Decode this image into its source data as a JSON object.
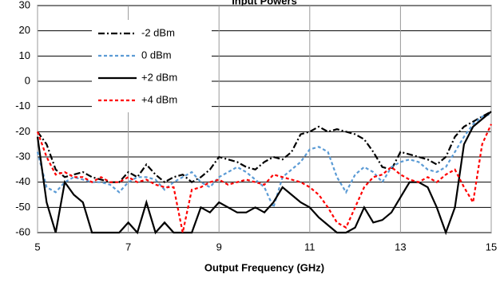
{
  "chart_data": {
    "type": "line",
    "title": "Input Powers",
    "x_label": "Output Frequency (GHz)",
    "xlim": [
      5,
      15
    ],
    "xticks": [
      5,
      7,
      9,
      11,
      13,
      15
    ],
    "ylim": [
      -60,
      30
    ],
    "yticks": [
      -60,
      -50,
      -40,
      -30,
      -20,
      -10,
      0,
      10,
      20,
      30
    ],
    "grid": true,
    "legend": "upper left",
    "x": [
      5,
      5.2,
      5.4,
      5.6,
      5.8,
      6,
      6.2,
      6.4,
      6.6,
      6.8,
      7,
      7.2,
      7.4,
      7.6,
      7.8,
      8,
      8.2,
      8.4,
      8.6,
      8.8,
      9,
      9.2,
      9.4,
      9.6,
      9.8,
      10,
      10.2,
      10.4,
      10.6,
      10.8,
      11,
      11.2,
      11.4,
      11.6,
      11.8,
      12,
      12.2,
      12.4,
      12.6,
      12.8,
      13,
      13.2,
      13.4,
      13.6,
      13.8,
      14,
      14.2,
      14.4,
      14.6,
      14.8,
      15
    ],
    "series": [
      {
        "name": "-2 dBm",
        "color": "#000000",
        "linestyle": "dashdot",
        "values": [
          -20,
          -25,
          -35,
          -38,
          -37,
          -36,
          -38,
          -39,
          -40,
          -40,
          -36,
          -38,
          -33,
          -37,
          -40,
          -38,
          -37,
          -40,
          -38,
          -35,
          -30,
          -31,
          -32,
          -34,
          -35,
          -32,
          -30,
          -31,
          -28,
          -21,
          -20,
          -18,
          -20,
          -19,
          -20,
          -21,
          -23,
          -28,
          -34,
          -35,
          -28,
          -29,
          -30,
          -31,
          -33,
          -30,
          -22,
          -18,
          -16,
          -14,
          -12
        ]
      },
      {
        "name": "0 dBm",
        "color": "#5b9bd5",
        "linestyle": "dashed",
        "values": [
          -28,
          -42,
          -44,
          -40,
          -38,
          -39,
          -40,
          -40,
          -41,
          -44,
          -40,
          -38,
          -38,
          -39,
          -43,
          -40,
          -38,
          -36,
          -40,
          -42,
          -38,
          -36,
          -34,
          -36,
          -39,
          -42,
          -50,
          -38,
          -35,
          -32,
          -27,
          -26,
          -28,
          -38,
          -44,
          -37,
          -34,
          -36,
          -40,
          -34,
          -32,
          -31,
          -32,
          -35,
          -36,
          -34,
          -28,
          -22,
          -17,
          -14,
          -13
        ]
      },
      {
        "name": "+2 dBm",
        "color": "#000000",
        "linestyle": "solid",
        "values": [
          -22,
          -48,
          -60,
          -40,
          -45,
          -48,
          -60,
          -60,
          -60,
          -60,
          -56,
          -60,
          -48,
          -60,
          -56,
          -60,
          -60,
          -60,
          -50,
          -52,
          -48,
          -50,
          -52,
          -52,
          -50,
          -52,
          -48,
          -42,
          -45,
          -48,
          -50,
          -54,
          -57,
          -60,
          -60,
          -58,
          -50,
          -56,
          -55,
          -52,
          -46,
          -40,
          -40,
          -42,
          -50,
          -60,
          -50,
          -25,
          -18,
          -15,
          -12
        ]
      },
      {
        "name": "+4 dBm",
        "color": "#ff0000",
        "linestyle": "dashed",
        "values": [
          -20,
          -30,
          -37,
          -36,
          -38,
          -38,
          -40,
          -38,
          -40,
          -40,
          -38,
          -40,
          -39,
          -41,
          -42,
          -42,
          -60,
          -43,
          -42,
          -40,
          -39,
          -41,
          -40,
          -39,
          -40,
          -41,
          -37,
          -38,
          -39,
          -40,
          -42,
          -45,
          -50,
          -56,
          -58,
          -50,
          -42,
          -38,
          -37,
          -34,
          -37,
          -39,
          -40,
          -38,
          -40,
          -37,
          -35,
          -42,
          -48,
          -25,
          -17
        ]
      }
    ]
  }
}
